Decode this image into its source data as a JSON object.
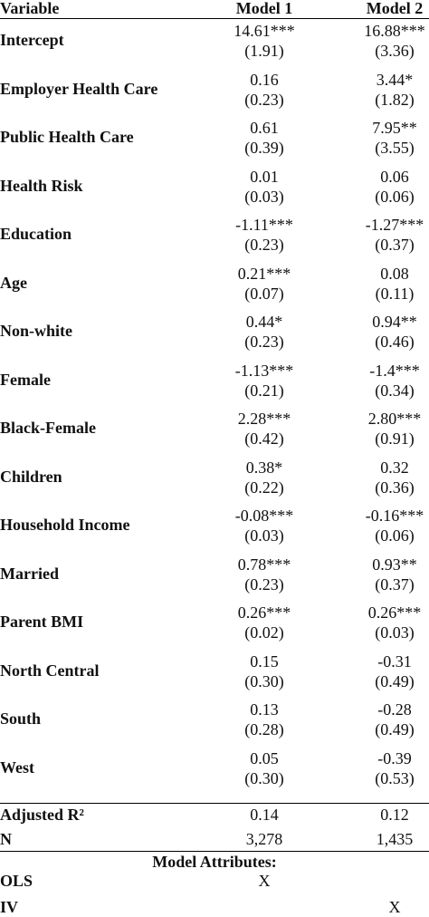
{
  "header": {
    "variable": "Variable",
    "model_1": "Model 1",
    "model_2": "Model 2"
  },
  "rows": [
    {
      "variable": "Intercept",
      "model_1": [
        "14.61***",
        "(1.91)"
      ],
      "model_2": [
        "16.88***",
        "(3.36)"
      ]
    },
    {
      "variable": "Employer Health Care",
      "model_1": [
        "0.16",
        "(0.23)"
      ],
      "model_2": [
        "3.44*",
        "(1.82)"
      ]
    },
    {
      "variable": "Public Health Care",
      "model_1": [
        "0.61",
        "(0.39)"
      ],
      "model_2": [
        "7.95**",
        "(3.55)"
      ]
    },
    {
      "variable": "Health Risk",
      "model_1": [
        "0.01",
        "(0.03)"
      ],
      "model_2": [
        "0.06",
        "(0.06)"
      ]
    },
    {
      "variable": "Education",
      "model_1": [
        "-1.11***",
        "(0.23)"
      ],
      "model_2": [
        "-1.27***",
        "(0.37)"
      ]
    },
    {
      "variable": "Age",
      "model_1": [
        "0.21***",
        "(0.07)"
      ],
      "model_2": [
        "0.08",
        "(0.11)"
      ]
    },
    {
      "variable": "Non-white",
      "model_1": [
        "0.44*",
        "(0.23)"
      ],
      "model_2": [
        "0.94**",
        "(0.46)"
      ]
    },
    {
      "variable": "Female",
      "model_1": [
        "-1.13***",
        "(0.21)"
      ],
      "model_2": [
        "-1.4***",
        "(0.34)"
      ]
    },
    {
      "variable": "Black-Female",
      "model_1": [
        "2.28***",
        "(0.42)"
      ],
      "model_2": [
        "2.80***",
        "(0.91)"
      ]
    },
    {
      "variable": "Children",
      "model_1": [
        "0.38*",
        "(0.22)"
      ],
      "model_2": [
        "0.32",
        "(0.36)"
      ]
    },
    {
      "variable": "Household Income",
      "model_1": [
        "-0.08***",
        "(0.03)"
      ],
      "model_2": [
        "-0.16***",
        "(0.06)"
      ]
    },
    {
      "variable": "Married",
      "model_1": [
        "0.78***",
        "(0.23)"
      ],
      "model_2": [
        "0.93**",
        "(0.37)"
      ]
    },
    {
      "variable": "Parent BMI",
      "model_1": [
        "0.26***",
        "(0.02)"
      ],
      "model_2": [
        "0.26***",
        "(0.03)"
      ]
    },
    {
      "variable": "North Central",
      "model_1": [
        "0.15",
        "(0.30)"
      ],
      "model_2": [
        "-0.31",
        "(0.49)"
      ]
    },
    {
      "variable": "South",
      "model_1": [
        "0.13",
        "(0.28)"
      ],
      "model_2": [
        "-0.28",
        "(0.49)"
      ]
    },
    {
      "variable": "West",
      "model_1": [
        "0.05",
        "(0.30)"
      ],
      "model_2": [
        "-0.39",
        "(0.53)"
      ]
    }
  ],
  "fit": [
    {
      "variable": "Adjusted R²",
      "model_1": "0.14",
      "model_2": "0.12"
    },
    {
      "variable": "N",
      "model_1": "3,278",
      "model_2": "1,435"
    }
  ],
  "attributes": {
    "title": "Model Attributes:",
    "rows": [
      {
        "variable": "OLS",
        "model_1": "X"
      },
      {
        "variable": "IV",
        "model_2": "X"
      }
    ]
  }
}
